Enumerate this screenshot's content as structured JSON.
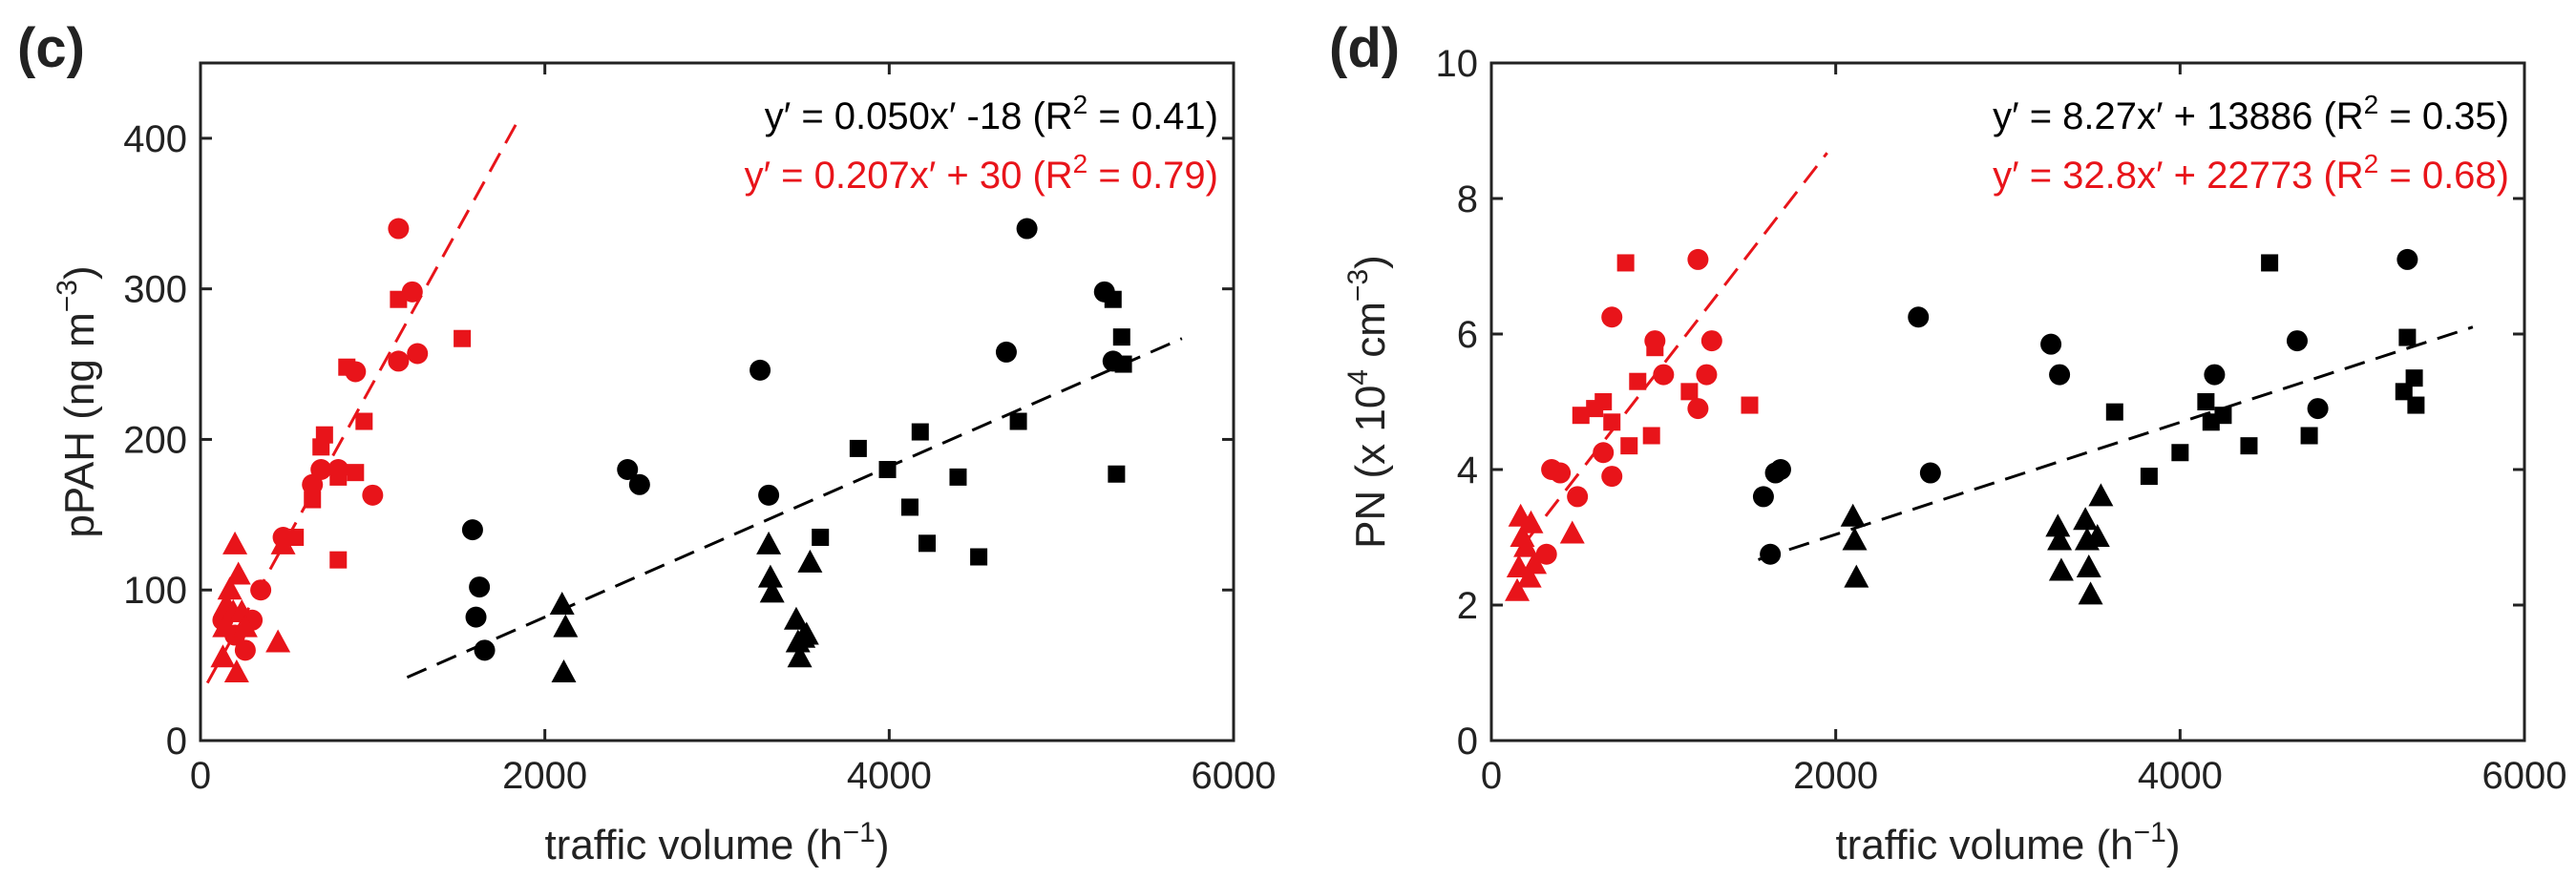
{
  "chart_data": [
    {
      "type": "scatter",
      "panel_label": "(c)",
      "xlabel": "traffic volume (h",
      "xlabel_sup": "−1",
      "xlabel_end": ")",
      "ylabel": "pPAH (ng m",
      "ylabel_sup": "−3",
      "ylabel_end": ")",
      "xlim": [
        0,
        6000
      ],
      "ylim": [
        0,
        450
      ],
      "xticks": [
        0,
        2000,
        4000,
        6000
      ],
      "yticks": [
        0,
        100,
        200,
        300,
        400
      ],
      "ytick_labels": [
        "0",
        "100",
        "200",
        "300",
        "400"
      ],
      "equations": [
        {
          "text": "y′ = 0.050x′ -18 (R",
          "sup": "2",
          "end": " = 0.41)",
          "color": "#000000"
        },
        {
          "text": "y′ = 0.207x′ + 30 (R",
          "sup": "2",
          "end": " = 0.79)",
          "color": "#e8141a"
        }
      ],
      "fits": [
        {
          "color": "#000000",
          "slope": 0.05,
          "intercept": -18,
          "x_range": [
            1200,
            5700
          ]
        },
        {
          "color": "#e8141a",
          "slope": 0.207,
          "intercept": 30,
          "x_range": [
            40,
            1850
          ]
        }
      ],
      "series": [
        {
          "name": "red-circle",
          "color": "#e8141a",
          "marker": "circle",
          "points": [
            [
              130,
              80
            ],
            [
              200,
              70
            ],
            [
              260,
              60
            ],
            [
              300,
              80
            ],
            [
              350,
              100
            ],
            [
              480,
              135
            ],
            [
              650,
              170
            ],
            [
              700,
              180
            ],
            [
              800,
              180
            ],
            [
              900,
              245
            ],
            [
              1000,
              163
            ],
            [
              1150,
              340
            ],
            [
              1150,
              252
            ],
            [
              1230,
              298
            ],
            [
              1260,
              257
            ]
          ]
        },
        {
          "name": "red-square",
          "color": "#e8141a",
          "marker": "square",
          "points": [
            [
              550,
              135
            ],
            [
              650,
              160
            ],
            [
              700,
              195
            ],
            [
              720,
              203
            ],
            [
              800,
              120
            ],
            [
              800,
              175
            ],
            [
              850,
              248
            ],
            [
              900,
              178
            ],
            [
              950,
              212
            ],
            [
              1150,
              293
            ],
            [
              1520,
              267
            ]
          ]
        },
        {
          "name": "red-triangle",
          "color": "#e8141a",
          "marker": "triangle",
          "points": [
            [
              130,
              55
            ],
            [
              140,
              75
            ],
            [
              150,
              90
            ],
            [
              170,
              100
            ],
            [
              190,
              85
            ],
            [
              200,
              130
            ],
            [
              210,
              45
            ],
            [
              220,
              110
            ],
            [
              240,
              85
            ],
            [
              260,
              75
            ],
            [
              450,
              65
            ],
            [
              480,
              130
            ]
          ]
        },
        {
          "name": "black-circle",
          "color": "#000000",
          "marker": "circle",
          "points": [
            [
              1580,
              140
            ],
            [
              1620,
              102
            ],
            [
              1650,
              60
            ],
            [
              1600,
              82
            ],
            [
              2480,
              180
            ],
            [
              2550,
              170
            ],
            [
              3250,
              246
            ],
            [
              3300,
              163
            ],
            [
              4680,
              258
            ],
            [
              4800,
              340
            ],
            [
              5250,
              298
            ],
            [
              5300,
              252
            ]
          ]
        },
        {
          "name": "black-square",
          "color": "#000000",
          "marker": "square",
          "points": [
            [
              3600,
              135
            ],
            [
              3820,
              194
            ],
            [
              3990,
              180
            ],
            [
              4120,
              155
            ],
            [
              4180,
              205
            ],
            [
              4220,
              131
            ],
            [
              4400,
              175
            ],
            [
              4520,
              122
            ],
            [
              4750,
              212
            ],
            [
              5300,
              293
            ],
            [
              5320,
              177
            ],
            [
              5350,
              268
            ],
            [
              5360,
              250
            ]
          ]
        },
        {
          "name": "black-triangle",
          "color": "#000000",
          "marker": "triangle",
          "points": [
            [
              2100,
              90
            ],
            [
              2120,
              75
            ],
            [
              2110,
              45
            ],
            [
              3300,
              130
            ],
            [
              3310,
              108
            ],
            [
              3320,
              98
            ],
            [
              3460,
              80
            ],
            [
              3470,
              65
            ],
            [
              3480,
              55
            ],
            [
              3500,
              68
            ],
            [
              3520,
              70
            ],
            [
              3540,
              118
            ]
          ]
        }
      ]
    },
    {
      "type": "scatter",
      "panel_label": "(d)",
      "xlabel": "traffic volume (h",
      "xlabel_sup": "−1",
      "xlabel_end": ")",
      "ylabel": "PN (x 10",
      "ylabel_sup": "4",
      "ylabel_mid": " cm",
      "ylabel_sup2": "−3",
      "ylabel_end": ")",
      "xlim": [
        0,
        6000
      ],
      "ylim": [
        0,
        10
      ],
      "xticks": [
        0,
        2000,
        4000,
        6000
      ],
      "yticks": [
        0,
        2,
        4,
        6,
        8,
        10
      ],
      "ytick_labels": [
        "0",
        "2",
        "4",
        "6",
        "8",
        "10"
      ],
      "equations": [
        {
          "text": "y′ = 8.27x′ + 13886 (R",
          "sup": "2",
          "end": " = 0.35)",
          "color": "#000000"
        },
        {
          "text": "y′ = 32.8x′ + 22773 (R",
          "sup": "2",
          "end": " = 0.68)",
          "color": "#e8141a"
        }
      ],
      "fits": [
        {
          "color": "#000000",
          "slope": 0.000827,
          "intercept": 1.3886,
          "x_range": [
            1550,
            5700
          ]
        },
        {
          "color": "#e8141a",
          "slope": 0.00328,
          "intercept": 2.2773,
          "x_range": [
            200,
            1950
          ]
        }
      ],
      "series": [
        {
          "name": "red-circle",
          "color": "#e8141a",
          "marker": "circle",
          "points": [
            [
              320,
              2.75
            ],
            [
              350,
              4.0
            ],
            [
              400,
              3.95
            ],
            [
              500,
              3.6
            ],
            [
              650,
              4.25
            ],
            [
              700,
              3.9
            ],
            [
              700,
              6.25
            ],
            [
              950,
              5.9
            ],
            [
              1000,
              5.4
            ],
            [
              1200,
              7.1
            ],
            [
              1200,
              4.9
            ],
            [
              1250,
              5.4
            ],
            [
              1280,
              5.9
            ]
          ]
        },
        {
          "name": "red-square",
          "color": "#e8141a",
          "marker": "square",
          "points": [
            [
              520,
              4.8
            ],
            [
              600,
              4.9
            ],
            [
              650,
              5.0
            ],
            [
              700,
              4.7
            ],
            [
              780,
              7.05
            ],
            [
              800,
              4.35
            ],
            [
              850,
              5.3
            ],
            [
              930,
              4.5
            ],
            [
              950,
              5.8
            ],
            [
              1150,
              5.15
            ],
            [
              1500,
              4.95
            ]
          ]
        },
        {
          "name": "red-triangle",
          "color": "#e8141a",
          "marker": "triangle",
          "points": [
            [
              150,
              2.2
            ],
            [
              160,
              2.55
            ],
            [
              170,
              3.3
            ],
            [
              180,
              3.0
            ],
            [
              200,
              2.85
            ],
            [
              220,
              2.4
            ],
            [
              230,
              3.2
            ],
            [
              250,
              2.6
            ],
            [
              470,
              3.05
            ]
          ]
        },
        {
          "name": "black-circle",
          "color": "#000000",
          "marker": "circle",
          "points": [
            [
              1580,
              3.6
            ],
            [
              1620,
              2.75
            ],
            [
              1650,
              3.95
            ],
            [
              1680,
              4.0
            ],
            [
              2480,
              6.25
            ],
            [
              2550,
              3.95
            ],
            [
              3250,
              5.85
            ],
            [
              3300,
              5.4
            ],
            [
              4200,
              5.4
            ],
            [
              4680,
              5.9
            ],
            [
              4800,
              4.9
            ],
            [
              5320,
              7.1
            ]
          ]
        },
        {
          "name": "black-square",
          "color": "#000000",
          "marker": "square",
          "points": [
            [
              3620,
              4.85
            ],
            [
              3820,
              3.9
            ],
            [
              4000,
              4.25
            ],
            [
              4150,
              5.0
            ],
            [
              4180,
              4.7
            ],
            [
              4250,
              4.8
            ],
            [
              4400,
              4.35
            ],
            [
              4520,
              7.05
            ],
            [
              4750,
              4.5
            ],
            [
              5300,
              5.15
            ],
            [
              5320,
              5.95
            ],
            [
              5360,
              5.35
            ],
            [
              5370,
              4.95
            ]
          ]
        },
        {
          "name": "black-triangle",
          "color": "#000000",
          "marker": "triangle",
          "points": [
            [
              2100,
              3.3
            ],
            [
              2110,
              2.95
            ],
            [
              2120,
              2.4
            ],
            [
              3290,
              3.15
            ],
            [
              3300,
              2.95
            ],
            [
              3310,
              2.5
            ],
            [
              3450,
              3.25
            ],
            [
              3460,
              2.95
            ],
            [
              3470,
              2.55
            ],
            [
              3480,
              2.15
            ],
            [
              3520,
              3.0
            ],
            [
              3540,
              3.6
            ]
          ]
        }
      ]
    }
  ]
}
